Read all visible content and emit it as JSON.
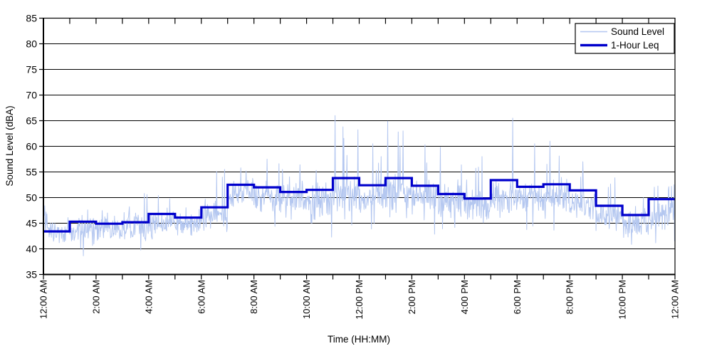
{
  "page": {
    "background_color": "#FFFFFF",
    "kind": "static sound-level time-history chart"
  },
  "chart_data": {
    "type": "line",
    "title": "",
    "xlabel": "Time (HH:MM)",
    "ylabel": "Sound Level (dBA)",
    "ylim": [
      35,
      85
    ],
    "ytick_step": 5,
    "ytick_labels": [
      "35",
      "40",
      "45",
      "50",
      "55",
      "60",
      "65",
      "70",
      "75",
      "80",
      "85"
    ],
    "x_range_hours": [
      0,
      24
    ],
    "xtick_interval_hours": 2,
    "minor_xtick_interval_hours": 1,
    "xtick_labels": [
      "12:00 AM",
      "2:00 AM",
      "4:00 AM",
      "6:00 AM",
      "8:00 AM",
      "10:00 AM",
      "12:00 PM",
      "2:00 PM",
      "4:00 PM",
      "6:00 PM",
      "8:00 PM",
      "10:00 PM",
      "12:00 AM"
    ],
    "grid": "horizontal-solid-black",
    "legend_position": "top-right-inside",
    "frame_color": "#000000",
    "grid_color": "#000000",
    "series": [
      {
        "name": "Sound Level",
        "color": "#B4C7F0",
        "line_width": 1,
        "sampling": "1-minute noisy trace (values estimated from pixels, regenerated procedurally)",
        "noise_model": {
          "seed": 12345,
          "points_per_hour": 60,
          "hourly_base": [
            43.3,
            43.5,
            44.0,
            44.3,
            45.0,
            45.0,
            46.3,
            51.0,
            50.3,
            49.8,
            50.0,
            50.8,
            50.3,
            51.0,
            50.3,
            49.3,
            48.5,
            50.0,
            50.0,
            50.3,
            49.0,
            46.5,
            45.0,
            46.3
          ],
          "hourly_spread": [
            1.8,
            2.0,
            1.7,
            1.9,
            2.0,
            1.7,
            2.3,
            2.0,
            2.3,
            2.3,
            2.3,
            2.5,
            2.3,
            2.5,
            2.5,
            2.3,
            2.0,
            2.5,
            2.3,
            2.3,
            2.3,
            2.0,
            1.9,
            2.2
          ],
          "hourly_peak": [
            48.5,
            48.0,
            48.5,
            51.0,
            50.5,
            48.5,
            55.5,
            56.0,
            57.5,
            56.5,
            55.5,
            66.0,
            60.5,
            65.0,
            60.5,
            60.0,
            58.0,
            65.5,
            60.5,
            61.0,
            57.0,
            54.0,
            52.0,
            52.5
          ],
          "hourly_min": [
            41.0,
            38.5,
            41.0,
            39.5,
            39.0,
            40.0,
            40.5,
            46.0,
            44.0,
            44.0,
            41.5,
            44.0,
            43.0,
            44.0,
            40.5,
            43.0,
            44.0,
            43.0,
            43.0,
            43.0,
            42.0,
            41.0,
            40.5,
            41.0
          ],
          "spike_probability": 0.06,
          "dip_probability": 0.05
        },
        "notable_spikes_min_value": [
          [
            1,
            46.8
          ],
          [
            3,
            48.4
          ],
          [
            6,
            47.2
          ],
          [
            230,
            50.8
          ],
          [
            236,
            50.6
          ],
          [
            262,
            50.4
          ],
          [
            408,
            54.0
          ],
          [
            413,
            55.5
          ],
          [
            450,
            55.8
          ],
          [
            462,
            55.2
          ],
          [
            510,
            57.5
          ],
          [
            545,
            55.5
          ],
          [
            585,
            56.4
          ],
          [
            622,
            55.3
          ],
          [
            665,
            66.0
          ],
          [
            683,
            63.8
          ],
          [
            751,
            60.5
          ],
          [
            770,
            58.0
          ],
          [
            785,
            64.9
          ],
          [
            820,
            63.0
          ],
          [
            870,
            60.3
          ],
          [
            905,
            59.8
          ],
          [
            1000,
            58.0
          ],
          [
            1070,
            65.5
          ],
          [
            1120,
            60.5
          ],
          [
            1155,
            61.0
          ],
          [
            1230,
            57.0
          ],
          [
            1425,
            51.5
          ],
          [
            1432,
            52.2
          ],
          [
            1438,
            52.5
          ]
        ]
      },
      {
        "name": "1-Hour Leq",
        "color": "#0000CC",
        "line_width": 3.2,
        "style": "step-per-hour",
        "hours": [
          0,
          1,
          2,
          3,
          4,
          5,
          6,
          7,
          8,
          9,
          10,
          11,
          12,
          13,
          14,
          15,
          16,
          17,
          18,
          19,
          20,
          21,
          22,
          23
        ],
        "values": [
          43.4,
          45.3,
          44.9,
          45.2,
          46.8,
          46.1,
          48.1,
          52.5,
          52.0,
          51.1,
          51.5,
          53.8,
          52.4,
          53.8,
          52.3,
          50.7,
          49.8,
          53.4,
          52.1,
          52.6,
          51.4,
          48.4,
          46.6,
          49.7
        ]
      }
    ]
  }
}
